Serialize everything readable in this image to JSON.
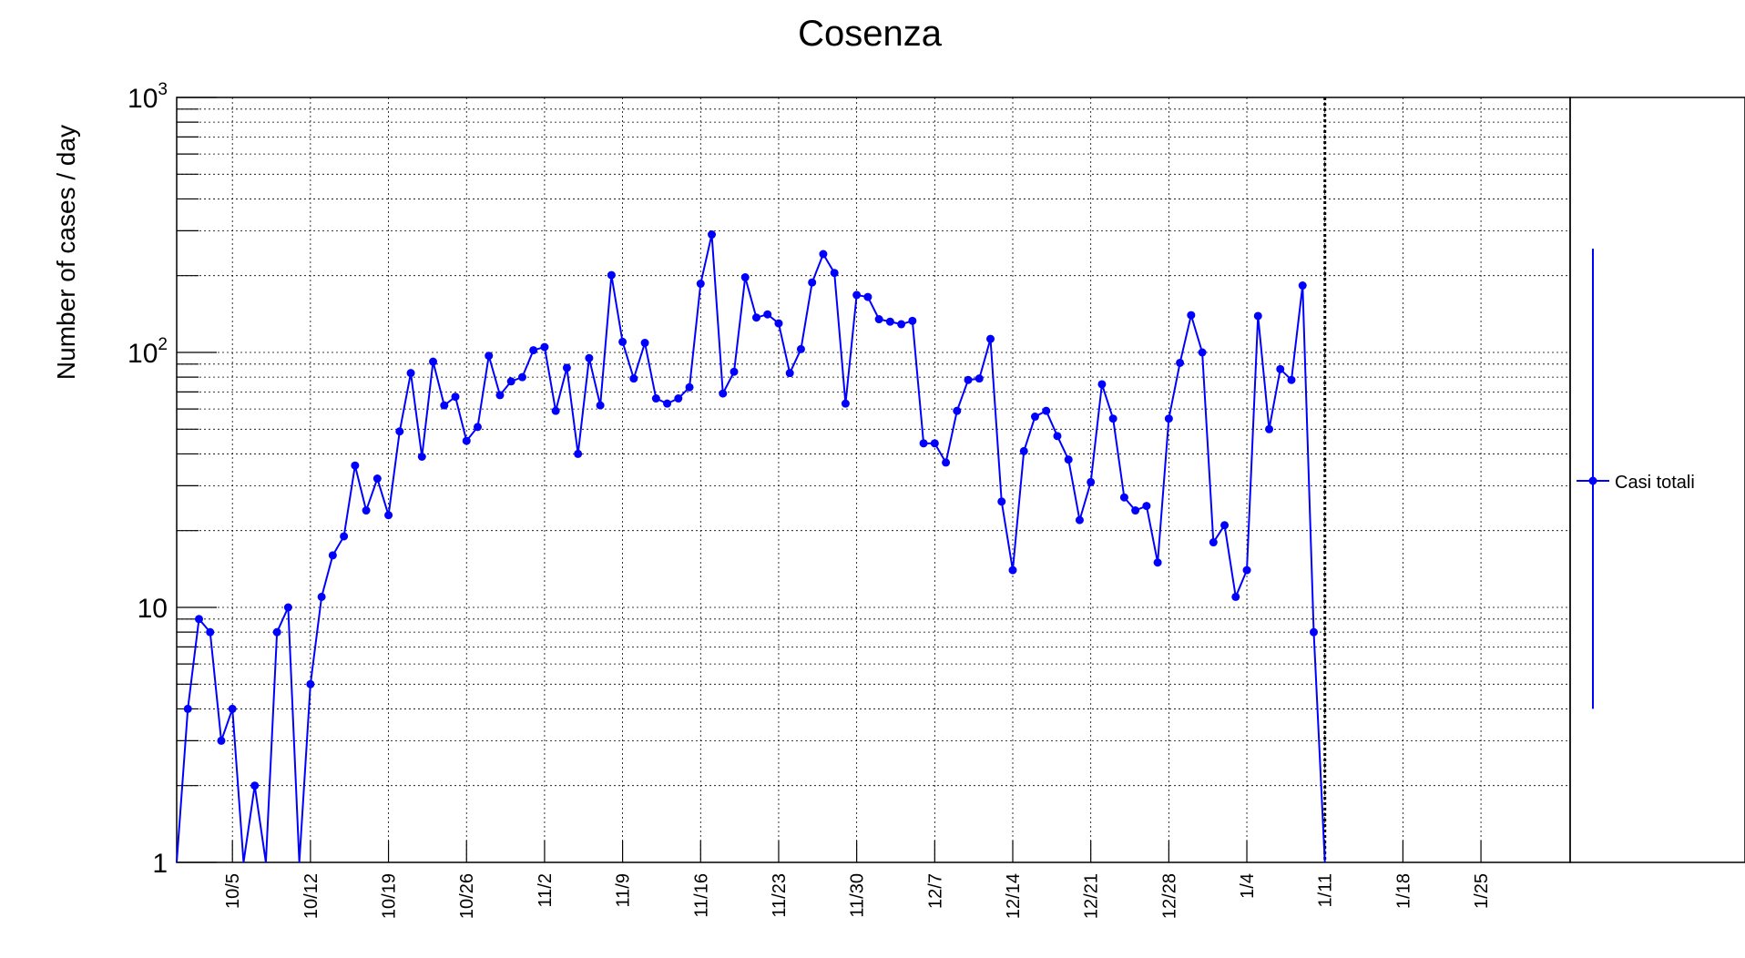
{
  "chart_data": {
    "type": "line",
    "title": "Cosenza",
    "ylabel": "Number of cases / day",
    "xlabel": "",
    "yscale": "log",
    "ylim": [
      1,
      1000
    ],
    "y_tick_labels": [
      {
        "value": 1,
        "base": "1",
        "exp": ""
      },
      {
        "value": 10,
        "base": "10",
        "exp": ""
      },
      {
        "value": 100,
        "base": "10",
        "exp": "2"
      },
      {
        "value": 1000,
        "base": "10",
        "exp": "3"
      }
    ],
    "xlim": [
      "2020-09-30",
      "2021-02-02"
    ],
    "x_ticks": [
      {
        "label": "10/5",
        "date": "2020-10-05"
      },
      {
        "label": "10/12",
        "date": "2020-10-12"
      },
      {
        "label": "10/19",
        "date": "2020-10-19"
      },
      {
        "label": "10/26",
        "date": "2020-10-26"
      },
      {
        "label": "11/2",
        "date": "2020-11-02"
      },
      {
        "label": "11/9",
        "date": "2020-11-09"
      },
      {
        "label": "11/16",
        "date": "2020-11-16"
      },
      {
        "label": "11/23",
        "date": "2020-11-23"
      },
      {
        "label": "11/30",
        "date": "2020-11-30"
      },
      {
        "label": "12/7",
        "date": "2020-12-07"
      },
      {
        "label": "12/14",
        "date": "2020-12-14"
      },
      {
        "label": "12/21",
        "date": "2020-12-21"
      },
      {
        "label": "12/28",
        "date": "2020-12-28"
      },
      {
        "label": "1/4",
        "date": "2021-01-04"
      },
      {
        "label": "1/11",
        "date": "2021-01-11"
      },
      {
        "label": "1/18",
        "date": "2021-01-18"
      },
      {
        "label": "1/25",
        "date": "2021-01-25"
      }
    ],
    "grid": true,
    "reference_line": {
      "date": "2021-01-11",
      "style": "dotted",
      "color": "#000000"
    },
    "legend_position": "right",
    "series": [
      {
        "name": "Casi totali",
        "color": "#0000ff",
        "legend_error_range": [
          4,
          255
        ],
        "points": [
          [
            "2020-09-30",
            1
          ],
          [
            "2020-10-01",
            4
          ],
          [
            "2020-10-02",
            9
          ],
          [
            "2020-10-03",
            8
          ],
          [
            "2020-10-04",
            3
          ],
          [
            "2020-10-05",
            4
          ],
          [
            "2020-10-06",
            1
          ],
          [
            "2020-10-07",
            2
          ],
          [
            "2020-10-08",
            1
          ],
          [
            "2020-10-09",
            8
          ],
          [
            "2020-10-10",
            10
          ],
          [
            "2020-10-11",
            1
          ],
          [
            "2020-10-12",
            5
          ],
          [
            "2020-10-13",
            11
          ],
          [
            "2020-10-14",
            16
          ],
          [
            "2020-10-15",
            19
          ],
          [
            "2020-10-16",
            36
          ],
          [
            "2020-10-17",
            24
          ],
          [
            "2020-10-18",
            32
          ],
          [
            "2020-10-19",
            23
          ],
          [
            "2020-10-20",
            49
          ],
          [
            "2020-10-21",
            83
          ],
          [
            "2020-10-22",
            39
          ],
          [
            "2020-10-23",
            92
          ],
          [
            "2020-10-24",
            62
          ],
          [
            "2020-10-25",
            67
          ],
          [
            "2020-10-26",
            45
          ],
          [
            "2020-10-27",
            51
          ],
          [
            "2020-10-28",
            97
          ],
          [
            "2020-10-29",
            68
          ],
          [
            "2020-10-30",
            77
          ],
          [
            "2020-10-31",
            80
          ],
          [
            "2020-11-01",
            102
          ],
          [
            "2020-11-02",
            105
          ],
          [
            "2020-11-03",
            59
          ],
          [
            "2020-11-04",
            87
          ],
          [
            "2020-11-05",
            40
          ],
          [
            "2020-11-06",
            95
          ],
          [
            "2020-11-07",
            62
          ],
          [
            "2020-11-08",
            201
          ],
          [
            "2020-11-09",
            110
          ],
          [
            "2020-11-10",
            79
          ],
          [
            "2020-11-11",
            109
          ],
          [
            "2020-11-12",
            66
          ],
          [
            "2020-11-13",
            63
          ],
          [
            "2020-11-14",
            66
          ],
          [
            "2020-11-15",
            73
          ],
          [
            "2020-11-16",
            186
          ],
          [
            "2020-11-17",
            290
          ],
          [
            "2020-11-18",
            69
          ],
          [
            "2020-11-19",
            84
          ],
          [
            "2020-11-20",
            197
          ],
          [
            "2020-11-21",
            137
          ],
          [
            "2020-11-22",
            141
          ],
          [
            "2020-11-23",
            130
          ],
          [
            "2020-11-24",
            83
          ],
          [
            "2020-11-25",
            103
          ],
          [
            "2020-11-26",
            188
          ],
          [
            "2020-11-27",
            243
          ],
          [
            "2020-11-28",
            205
          ],
          [
            "2020-11-29",
            63
          ],
          [
            "2020-11-30",
            168
          ],
          [
            "2020-12-01",
            165
          ],
          [
            "2020-12-02",
            135
          ],
          [
            "2020-12-03",
            132
          ],
          [
            "2020-12-04",
            129
          ],
          [
            "2020-12-05",
            133
          ],
          [
            "2020-12-06",
            44
          ],
          [
            "2020-12-07",
            44
          ],
          [
            "2020-12-08",
            37
          ],
          [
            "2020-12-09",
            59
          ],
          [
            "2020-12-10",
            78
          ],
          [
            "2020-12-11",
            79
          ],
          [
            "2020-12-12",
            113
          ],
          [
            "2020-12-13",
            26
          ],
          [
            "2020-12-14",
            14
          ],
          [
            "2020-12-15",
            41
          ],
          [
            "2020-12-16",
            56
          ],
          [
            "2020-12-17",
            59
          ],
          [
            "2020-12-18",
            47
          ],
          [
            "2020-12-19",
            38
          ],
          [
            "2020-12-20",
            22
          ],
          [
            "2020-12-21",
            31
          ],
          [
            "2020-12-22",
            75
          ],
          [
            "2020-12-23",
            55
          ],
          [
            "2020-12-24",
            27
          ],
          [
            "2020-12-25",
            24
          ],
          [
            "2020-12-26",
            25
          ],
          [
            "2020-12-27",
            15
          ],
          [
            "2020-12-28",
            55
          ],
          [
            "2020-12-29",
            91
          ],
          [
            "2020-12-30",
            140
          ],
          [
            "2020-12-31",
            100
          ],
          [
            "2021-01-01",
            18
          ],
          [
            "2021-01-02",
            21
          ],
          [
            "2021-01-03",
            11
          ],
          [
            "2021-01-04",
            14
          ],
          [
            "2021-01-05",
            139
          ],
          [
            "2021-01-06",
            50
          ],
          [
            "2021-01-07",
            86
          ],
          [
            "2021-01-08",
            78
          ],
          [
            "2021-01-09",
            183
          ],
          [
            "2021-01-10",
            8
          ],
          [
            "2021-01-11",
            1
          ]
        ]
      }
    ]
  }
}
